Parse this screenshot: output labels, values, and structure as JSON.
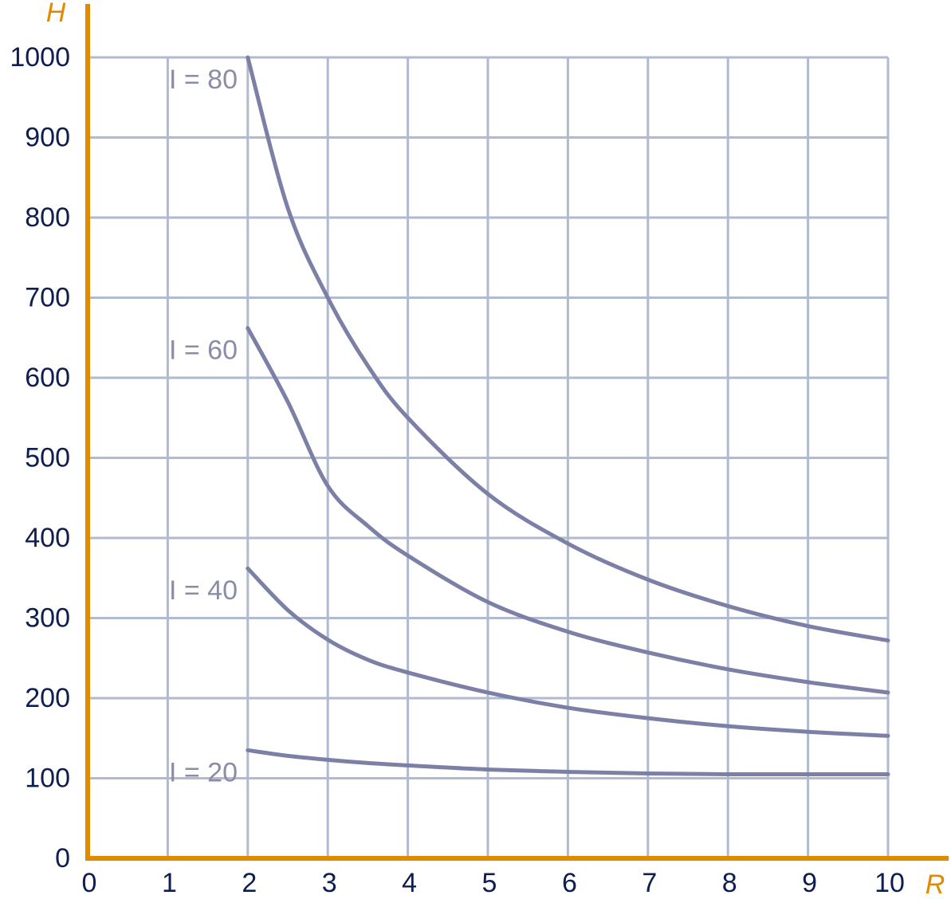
{
  "chart_data": {
    "type": "line",
    "x_label": "R",
    "y_label": "H",
    "xlim": [
      0,
      10
    ],
    "ylim": [
      0,
      1000
    ],
    "xticks": [
      0,
      1,
      2,
      3,
      4,
      5,
      6,
      7,
      8,
      9,
      10
    ],
    "yticks": [
      0,
      100,
      200,
      300,
      400,
      500,
      600,
      700,
      800,
      900,
      1000
    ],
    "grid": true,
    "x": [
      2,
      2.5,
      3,
      3.5,
      4,
      5,
      6,
      7,
      8,
      9,
      10
    ],
    "series": [
      {
        "name": "I = 80",
        "color": "#7c7fa6",
        "values": [
          1000,
          812,
          700,
          615,
          550,
          455,
          393,
          348,
          315,
          290,
          272
        ]
      },
      {
        "name": "I = 60",
        "color": "#7c7fa6",
        "values": [
          662,
          570,
          465,
          415,
          378,
          320,
          283,
          257,
          236,
          220,
          207
        ]
      },
      {
        "name": "I = 40",
        "color": "#7c7fa6",
        "values": [
          362,
          310,
          273,
          248,
          232,
          207,
          188,
          175,
          165,
          158,
          153
        ]
      },
      {
        "name": "I = 20",
        "color": "#7c7fa6",
        "values": [
          135,
          128,
          123,
          119,
          116,
          111,
          108,
          106,
          105,
          105,
          105
        ]
      }
    ]
  }
}
